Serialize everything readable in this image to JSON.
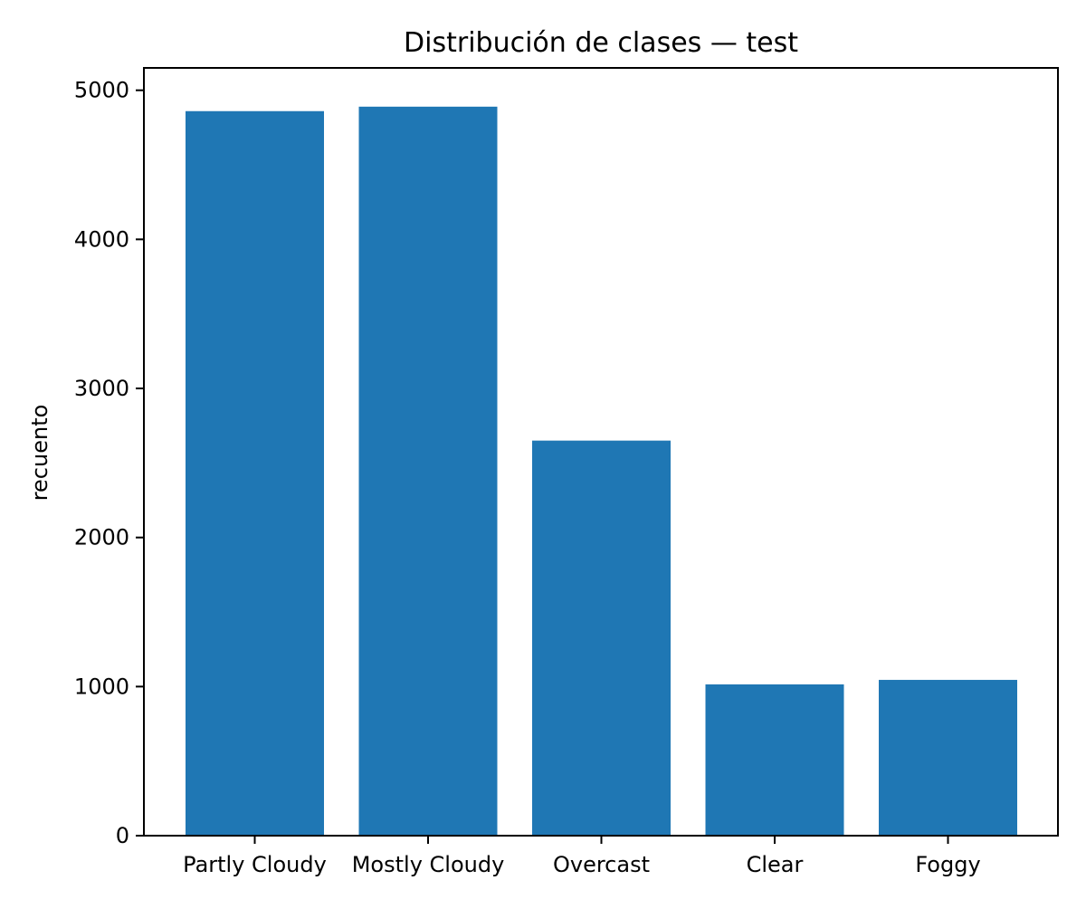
{
  "chart_data": {
    "type": "bar",
    "title": "Distribución de clases — test",
    "xlabel": "",
    "ylabel": "recuento",
    "categories": [
      "Partly Cloudy",
      "Mostly Cloudy",
      "Overcast",
      "Clear",
      "Foggy"
    ],
    "values": [
      4860,
      4890,
      2650,
      1015,
      1045
    ],
    "ylim": [
      0,
      5150
    ],
    "yticks": [
      0,
      1000,
      2000,
      3000,
      4000,
      5000
    ],
    "ytick_labels": [
      "0",
      "1000",
      "2000",
      "3000",
      "4000",
      "5000"
    ],
    "grid": false,
    "legend": "none",
    "bar_color": "#1f77b4"
  }
}
